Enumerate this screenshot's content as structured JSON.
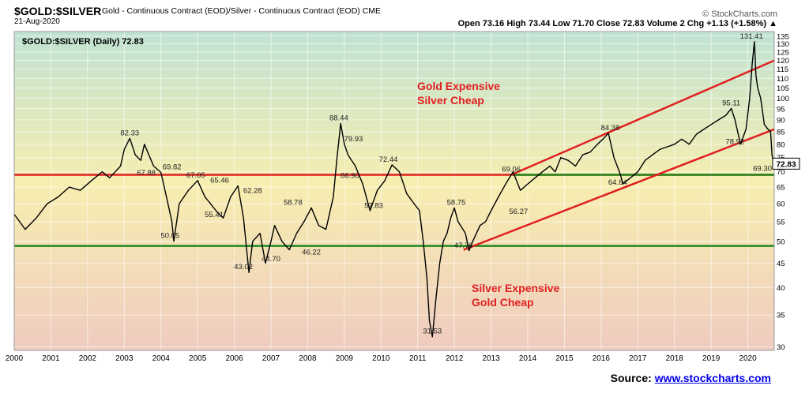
{
  "header": {
    "symbol": "$GOLD:$SILVER",
    "description": "Gold - Continuous Contract (EOD)/Silver - Continuous Contract (EOD) CME",
    "date": "21-Aug-2020",
    "credit": "© StockCharts.com",
    "ohlc": "Open 73.16  High 73.44  Low 71.70  Close 72.83  Volume 2  Chg +1.13 (+1.58%) ▲"
  },
  "legend_label": "$GOLD:$SILVER (Daily) 72.83",
  "annotations": {
    "upper_line1": "Gold Expensive",
    "upper_line2": "Silver Cheap",
    "lower_line1": "Silver Expensive",
    "lower_line2": "Gold Cheap"
  },
  "source": {
    "label": "Source:",
    "link": "www.stockcharts.com"
  },
  "colors": {
    "series": "#000000",
    "resistance": "#e02020",
    "support": "#1f8a1f",
    "annotation_text": "#e02020",
    "bg_top": "#bfe2d2",
    "bg_mid": "#f7eeb0",
    "bg_bottom": "#efcbc0"
  },
  "chart_data": {
    "type": "line",
    "title": "$GOLD:$SILVER (Daily) 72.83",
    "scale": "log",
    "ylim": [
      29.5,
      138
    ],
    "xlim": [
      2000.0,
      2020.72
    ],
    "y_ticks": [
      30,
      35,
      40,
      45,
      50,
      55,
      60,
      65,
      70,
      75,
      80,
      85,
      90,
      95,
      100,
      105,
      110,
      115,
      120,
      125,
      130,
      135
    ],
    "x_ticks": [
      "2000",
      "2001",
      "2002",
      "2003",
      "2004",
      "2005",
      "2006",
      "2007",
      "2008",
      "2009",
      "2010",
      "2011",
      "2012",
      "2013",
      "2014",
      "2015",
      "2016",
      "2017",
      "2018",
      "2019",
      "2020"
    ],
    "last_value": 72.83,
    "series": [
      {
        "name": "$GOLD:$SILVER",
        "x": [
          2000.0,
          2000.3,
          2000.6,
          2000.9,
          2001.2,
          2001.5,
          2001.8,
          2002.1,
          2002.4,
          2002.6,
          2002.9,
          2003.0,
          2003.15,
          2003.3,
          2003.45,
          2003.55,
          2003.8,
          2004.0,
          2004.15,
          2004.3,
          2004.35,
          2004.5,
          2004.75,
          2005.0,
          2005.2,
          2005.35,
          2005.5,
          2005.7,
          2005.9,
          2006.1,
          2006.25,
          2006.4,
          2006.5,
          2006.7,
          2006.85,
          2007.0,
          2007.1,
          2007.3,
          2007.5,
          2007.7,
          2007.9,
          2008.1,
          2008.3,
          2008.5,
          2008.7,
          2008.8,
          2008.9,
          2009.0,
          2009.1,
          2009.3,
          2009.5,
          2009.7,
          2009.9,
          2010.1,
          2010.3,
          2010.5,
          2010.7,
          2010.9,
          2011.05,
          2011.15,
          2011.25,
          2011.32,
          2011.4,
          2011.5,
          2011.6,
          2011.7,
          2011.8,
          2011.9,
          2012.0,
          2012.1,
          2012.3,
          2012.4,
          2012.5,
          2012.7,
          2012.85,
          2013.0,
          2013.2,
          2013.4,
          2013.6,
          2013.8,
          2014.0,
          2014.2,
          2014.4,
          2014.6,
          2014.75,
          2014.9,
          2015.1,
          2015.3,
          2015.5,
          2015.7,
          2015.9,
          2016.05,
          2016.2,
          2016.35,
          2016.5,
          2016.6,
          2016.8,
          2017.0,
          2017.2,
          2017.4,
          2017.6,
          2017.8,
          2018.0,
          2018.2,
          2018.4,
          2018.6,
          2018.8,
          2019.0,
          2019.2,
          2019.4,
          2019.55,
          2019.65,
          2019.8,
          2019.95,
          2020.05,
          2020.12,
          2020.18,
          2020.22,
          2020.27,
          2020.35,
          2020.45,
          2020.55,
          2020.62,
          2020.66,
          2020.7
        ],
        "values": [
          57,
          53,
          56,
          60,
          62,
          65,
          64,
          67,
          70,
          68,
          72,
          78,
          82.3,
          76,
          74,
          80,
          72,
          69.8,
          62,
          55,
          50,
          60,
          64,
          67.1,
          62,
          60,
          58,
          56,
          62,
          65.4,
          56,
          43,
          50,
          52,
          45,
          50,
          54,
          50,
          48,
          52,
          55,
          58.8,
          54,
          53,
          62,
          75,
          88.4,
          80,
          76,
          72,
          66,
          58,
          64,
          67,
          72.4,
          70,
          63,
          60,
          58,
          50,
          42,
          34,
          31.5,
          38,
          45,
          50,
          52,
          56,
          58.8,
          55,
          52,
          47.8,
          50,
          54,
          55,
          58,
          62,
          66,
          70,
          64,
          66,
          68,
          70,
          72,
          70,
          75,
          74,
          72,
          76,
          77,
          80,
          82,
          84.4,
          75,
          70,
          66,
          68,
          70,
          74,
          76,
          78,
          79,
          80,
          82,
          80,
          84,
          86,
          88,
          90,
          92,
          95.1,
          90,
          80,
          86,
          100,
          118,
          131.4,
          112,
          105,
          100,
          88,
          86,
          85,
          76,
          72.8
        ]
      }
    ],
    "point_labels": [
      {
        "x": 2003.15,
        "y": 82.33,
        "text": "82.33"
      },
      {
        "x": 2003.6,
        "y": 67.88,
        "text": "67.88"
      },
      {
        "x": 2004.3,
        "y": 69.82,
        "text": "69.82"
      },
      {
        "x": 2004.25,
        "y": 50.05,
        "text": "50.05"
      },
      {
        "x": 2004.95,
        "y": 67.05,
        "text": "67.05"
      },
      {
        "x": 2005.6,
        "y": 65.46,
        "text": "65.46"
      },
      {
        "x": 2005.45,
        "y": 55.41,
        "text": "55.41"
      },
      {
        "x": 2006.5,
        "y": 62.28,
        "text": "62.28"
      },
      {
        "x": 2006.25,
        "y": 43.02,
        "text": "43.02"
      },
      {
        "x": 2007.0,
        "y": 44.7,
        "text": "44.70"
      },
      {
        "x": 2007.6,
        "y": 58.78,
        "text": "58.78"
      },
      {
        "x": 2008.1,
        "y": 46.22,
        "text": "46.22"
      },
      {
        "x": 2008.85,
        "y": 88.44,
        "text": "88.44"
      },
      {
        "x": 2009.25,
        "y": 79.93,
        "text": "79.93"
      },
      {
        "x": 2009.15,
        "y": 66.9,
        "text": "66.90"
      },
      {
        "x": 2009.8,
        "y": 57.83,
        "text": "57.83"
      },
      {
        "x": 2010.2,
        "y": 72.44,
        "text": "72.44"
      },
      {
        "x": 2011.4,
        "y": 31.53,
        "text": "31.53"
      },
      {
        "x": 2012.05,
        "y": 58.75,
        "text": "58.75"
      },
      {
        "x": 2012.25,
        "y": 47.76,
        "text": "47.76"
      },
      {
        "x": 2013.55,
        "y": 69.06,
        "text": "69.06"
      },
      {
        "x": 2013.75,
        "y": 56.27,
        "text": "56.27"
      },
      {
        "x": 2016.25,
        "y": 84.38,
        "text": "84.38"
      },
      {
        "x": 2016.45,
        "y": 64.84,
        "text": "64.84"
      },
      {
        "x": 2019.55,
        "y": 95.11,
        "text": "95.11"
      },
      {
        "x": 2019.65,
        "y": 78.92,
        "text": "78.92"
      },
      {
        "x": 2020.1,
        "y": 131.41,
        "text": "131.41"
      },
      {
        "x": 2020.4,
        "y": 69.3,
        "text": "69.30"
      }
    ],
    "horizontal_lines": [
      {
        "y": 69.0,
        "color": "#e02020"
      },
      {
        "y": 48.9,
        "color": "#1f8a1f"
      },
      {
        "y": 69.0,
        "x_from": 2013.6,
        "x_to": 2020.72,
        "color": "#1f8a1f"
      }
    ],
    "trend_lines": [
      {
        "from": [
          2013.55,
          69.0
        ],
        "to": [
          2020.72,
          120.0
        ],
        "color": "#e02020"
      },
      {
        "from": [
          2012.25,
          48.0
        ],
        "to": [
          2020.72,
          86.0
        ],
        "color": "#e02020"
      }
    ]
  }
}
